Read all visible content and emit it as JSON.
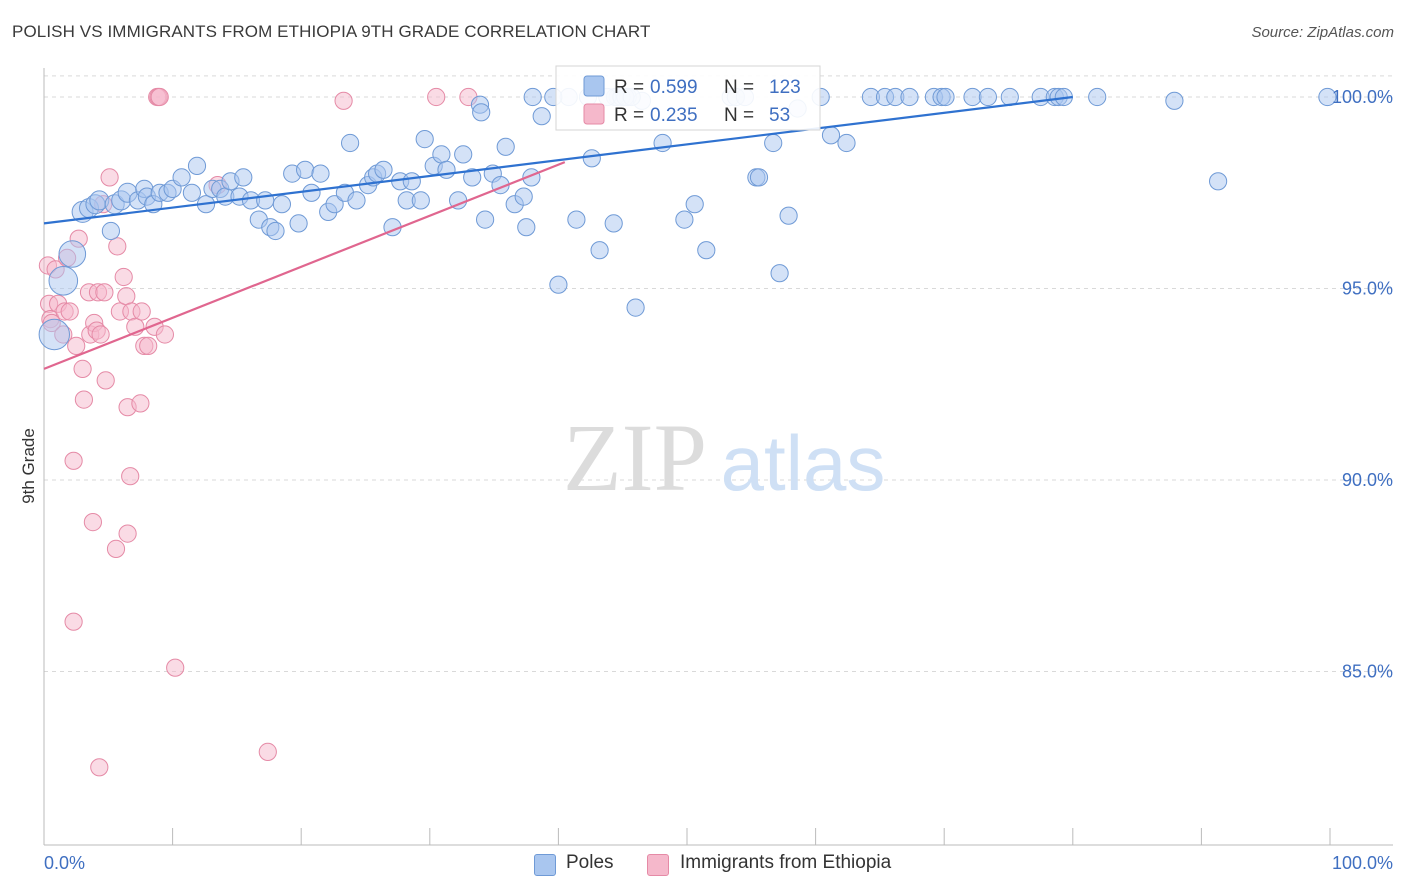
{
  "header": {
    "title": "POLISH VS IMMIGRANTS FROM ETHIOPIA 9TH GRADE CORRELATION CHART",
    "source": "Source: ZipAtlas.com"
  },
  "watermark": {
    "zip": "ZIP",
    "atlas": "atlas"
  },
  "colors": {
    "blue_fill": "#a9c6ef",
    "blue_stroke": "#6f9ad6",
    "blue_line": "#2f72d0",
    "pink_fill": "#f5b8cb",
    "pink_stroke": "#e58aa6",
    "pink_line": "#e0668f",
    "axis_text": "#3f6fc1",
    "grid": "#d9d9d9"
  },
  "chart_data": {
    "type": "scatter",
    "title": "POLISH VS IMMIGRANTS FROM ETHIOPIA 9TH GRADE CORRELATION CHART",
    "xlabel": "",
    "ylabel": "9th Grade",
    "xlim": [
      0,
      100
    ],
    "ylim": [
      80.3,
      100.8
    ],
    "x_tick_labels": [
      "0.0%",
      "100.0%"
    ],
    "y_ticks": [
      85,
      90,
      95,
      100
    ],
    "y_tick_labels": [
      "85.0%",
      "90.0%",
      "95.0%",
      "100.0%"
    ],
    "grid": "horizontal dashed",
    "legend": {
      "position": "top-center",
      "rows": [
        {
          "r_label": "R =",
          "r_value": "0.599",
          "n_label": "N =",
          "n_value": "123"
        },
        {
          "r_label": "R =",
          "r_value": "0.235",
          "n_label": "N =",
          "n_value": "53"
        }
      ]
    },
    "series": [
      {
        "name": "Poles",
        "color": "#a9c6ef",
        "trendline": {
          "x": [
            0,
            80
          ],
          "y": [
            96.7,
            100.0
          ]
        },
        "points": [
          [
            0.8,
            93.8,
            1.6
          ],
          [
            1.5,
            95.2,
            1.5
          ],
          [
            2.2,
            95.9,
            1.4
          ],
          [
            3.0,
            97.0,
            1.1
          ],
          [
            3.5,
            97.1,
            1.0
          ],
          [
            4.0,
            97.2,
            1.0
          ],
          [
            4.3,
            97.3,
            1.0
          ],
          [
            5.2,
            96.5,
            0.9
          ],
          [
            5.5,
            97.2,
            1.0
          ],
          [
            6.0,
            97.3,
            1.0
          ],
          [
            6.5,
            97.5,
            1.0
          ],
          [
            7.3,
            97.3,
            0.9
          ],
          [
            7.8,
            97.6,
            0.9
          ],
          [
            8.0,
            97.4,
            0.9
          ],
          [
            8.5,
            97.2,
            0.9
          ],
          [
            9.0,
            97.5,
            0.9
          ],
          [
            9.6,
            97.5,
            0.9
          ],
          [
            10.0,
            97.6,
            0.9
          ],
          [
            10.7,
            97.9,
            0.9
          ],
          [
            11.5,
            97.5,
            0.9
          ],
          [
            11.9,
            98.2,
            0.9
          ],
          [
            12.6,
            97.2,
            0.9
          ],
          [
            13.1,
            97.6,
            0.9
          ],
          [
            13.7,
            97.6,
            0.9
          ],
          [
            14.1,
            97.4,
            0.9
          ],
          [
            14.5,
            97.8,
            0.9
          ],
          [
            15.2,
            97.4,
            0.9
          ],
          [
            15.5,
            97.9,
            0.9
          ],
          [
            16.1,
            97.3,
            0.9
          ],
          [
            16.7,
            96.8,
            0.9
          ],
          [
            17.2,
            97.3,
            0.9
          ],
          [
            17.6,
            96.6,
            0.9
          ],
          [
            18.0,
            96.5,
            0.9
          ],
          [
            18.5,
            97.2,
            0.9
          ],
          [
            19.3,
            98.0,
            0.9
          ],
          [
            19.8,
            96.7,
            0.9
          ],
          [
            20.3,
            98.1,
            0.9
          ],
          [
            20.8,
            97.5,
            0.9
          ],
          [
            21.5,
            98.0,
            0.9
          ],
          [
            22.1,
            97.0,
            0.9
          ],
          [
            22.6,
            97.2,
            0.9
          ],
          [
            23.4,
            97.5,
            0.9
          ],
          [
            23.8,
            98.8,
            0.9
          ],
          [
            24.3,
            97.3,
            0.9
          ],
          [
            25.2,
            97.7,
            0.9
          ],
          [
            25.6,
            97.9,
            0.9
          ],
          [
            25.9,
            98.0,
            0.9
          ],
          [
            26.4,
            98.1,
            0.9
          ],
          [
            27.1,
            96.6,
            0.9
          ],
          [
            27.7,
            97.8,
            0.9
          ],
          [
            28.2,
            97.3,
            0.9
          ],
          [
            28.6,
            97.8,
            0.9
          ],
          [
            29.3,
            97.3,
            0.9
          ],
          [
            29.6,
            98.9,
            0.9
          ],
          [
            30.3,
            98.2,
            0.9
          ],
          [
            30.9,
            98.5,
            0.9
          ],
          [
            31.3,
            98.1,
            0.9
          ],
          [
            32.2,
            97.3,
            0.9
          ],
          [
            32.6,
            98.5,
            0.9
          ],
          [
            33.3,
            97.9,
            0.9
          ],
          [
            33.9,
            99.8,
            0.9
          ],
          [
            34.3,
            96.8,
            0.9
          ],
          [
            34.9,
            98.0,
            0.9
          ],
          [
            35.5,
            97.7,
            0.9
          ],
          [
            35.9,
            98.7,
            0.9
          ],
          [
            36.6,
            97.2,
            0.9
          ],
          [
            37.3,
            97.4,
            0.9
          ],
          [
            37.5,
            96.6,
            0.9
          ],
          [
            38.0,
            100.0,
            0.9
          ],
          [
            38.7,
            99.5,
            0.9
          ],
          [
            40.0,
            95.1,
            0.9
          ],
          [
            40.8,
            100.0,
            0.9
          ],
          [
            41.4,
            96.8,
            0.9
          ],
          [
            42.3,
            100.0,
            0.9
          ],
          [
            42.6,
            98.4,
            0.9
          ],
          [
            43.2,
            96.0,
            0.9
          ],
          [
            44.3,
            96.7,
            0.9
          ],
          [
            44.6,
            100.0,
            0.9
          ],
          [
            45.4,
            100.0,
            0.9
          ],
          [
            46.0,
            94.5,
            0.9
          ],
          [
            46.5,
            99.9,
            0.9
          ],
          [
            48.1,
            98.8,
            0.9
          ],
          [
            49.8,
            96.8,
            0.9
          ],
          [
            50.6,
            97.2,
            0.9
          ],
          [
            51.5,
            96.0,
            0.9
          ],
          [
            53.4,
            100.0,
            0.9
          ],
          [
            53.8,
            100.0,
            0.9
          ],
          [
            54.5,
            100.0,
            0.9
          ],
          [
            55.4,
            97.9,
            0.9
          ],
          [
            55.6,
            97.9,
            0.9
          ],
          [
            56.7,
            98.8,
            0.9
          ],
          [
            57.2,
            95.4,
            0.9
          ],
          [
            57.9,
            96.9,
            0.9
          ],
          [
            58.6,
            99.7,
            0.9
          ],
          [
            60.4,
            100.0,
            0.9
          ],
          [
            61.2,
            99.0,
            0.9
          ],
          [
            62.4,
            98.8,
            0.9
          ],
          [
            64.3,
            100.0,
            0.9
          ],
          [
            65.4,
            100.0,
            0.9
          ],
          [
            66.2,
            100.0,
            0.9
          ],
          [
            67.3,
            100.0,
            0.9
          ],
          [
            69.2,
            100.0,
            0.9
          ],
          [
            69.8,
            100.0,
            0.9
          ],
          [
            70.1,
            100.0,
            0.9
          ],
          [
            72.2,
            100.0,
            0.9
          ],
          [
            73.4,
            100.0,
            0.9
          ],
          [
            75.1,
            100.0,
            0.9
          ],
          [
            77.5,
            100.0,
            0.9
          ],
          [
            78.6,
            100.0,
            0.9
          ],
          [
            78.9,
            100.0,
            0.9
          ],
          [
            79.3,
            100.0,
            0.9
          ],
          [
            81.9,
            100.0,
            0.9
          ],
          [
            87.9,
            99.9,
            0.9
          ],
          [
            91.3,
            97.8,
            0.9
          ],
          [
            99.8,
            100.0,
            0.9
          ],
          [
            44.4,
            100.0,
            0.9
          ],
          [
            43.8,
            100.0,
            0.9
          ],
          [
            44.9,
            100.0,
            0.9
          ],
          [
            39.6,
            100.0,
            0.9
          ],
          [
            34.0,
            99.6,
            0.9
          ],
          [
            45.2,
            100.0,
            0.9
          ],
          [
            45.7,
            100.0,
            0.9
          ],
          [
            37.9,
            97.9,
            0.9
          ]
        ]
      },
      {
        "name": "Immigrants from Ethiopia",
        "color": "#f5b8cb",
        "trendline": {
          "x": [
            0,
            40.5
          ],
          "y": [
            92.9,
            98.3
          ]
        },
        "points": [
          [
            0.3,
            95.6,
            0.9
          ],
          [
            0.4,
            94.6,
            0.9
          ],
          [
            0.5,
            94.2,
            0.9
          ],
          [
            0.6,
            94.1,
            0.9
          ],
          [
            0.9,
            95.5,
            0.9
          ],
          [
            1.1,
            94.6,
            0.9
          ],
          [
            1.5,
            93.8,
            0.9
          ],
          [
            1.6,
            94.4,
            0.9
          ],
          [
            1.8,
            95.8,
            0.9
          ],
          [
            2.0,
            94.4,
            0.9
          ],
          [
            2.3,
            90.5,
            0.9
          ],
          [
            2.3,
            86.3,
            0.9
          ],
          [
            2.5,
            93.5,
            0.9
          ],
          [
            2.7,
            96.3,
            0.9
          ],
          [
            3.0,
            92.9,
            0.9
          ],
          [
            3.1,
            92.1,
            0.9
          ],
          [
            3.5,
            94.9,
            0.9
          ],
          [
            3.6,
            93.8,
            0.9
          ],
          [
            3.8,
            88.9,
            0.9
          ],
          [
            3.9,
            94.1,
            0.9
          ],
          [
            4.1,
            93.9,
            0.9
          ],
          [
            4.2,
            94.9,
            0.9
          ],
          [
            4.3,
            82.5,
            0.9
          ],
          [
            4.4,
            93.8,
            0.9
          ],
          [
            4.6,
            97.2,
            0.9
          ],
          [
            4.7,
            94.9,
            0.9
          ],
          [
            4.8,
            92.6,
            0.9
          ],
          [
            5.1,
            97.9,
            0.9
          ],
          [
            5.6,
            88.2,
            0.9
          ],
          [
            5.7,
            96.1,
            0.9
          ],
          [
            5.9,
            94.4,
            0.9
          ],
          [
            6.2,
            95.3,
            0.9
          ],
          [
            6.4,
            94.8,
            0.9
          ],
          [
            6.5,
            88.6,
            0.9
          ],
          [
            6.5,
            91.9,
            0.9
          ],
          [
            6.7,
            90.1,
            0.9
          ],
          [
            6.8,
            94.4,
            0.9
          ],
          [
            7.1,
            94.0,
            0.9
          ],
          [
            7.5,
            92.0,
            0.9
          ],
          [
            7.6,
            94.4,
            0.9
          ],
          [
            7.8,
            93.5,
            0.9
          ],
          [
            8.1,
            93.5,
            0.9
          ],
          [
            8.6,
            94.0,
            0.9
          ],
          [
            8.8,
            100.0,
            0.9
          ],
          [
            8.9,
            100.0,
            0.9
          ],
          [
            9.0,
            100.0,
            0.9
          ],
          [
            9.4,
            93.8,
            0.9
          ],
          [
            10.2,
            85.1,
            0.9
          ],
          [
            17.4,
            82.9,
            0.9
          ],
          [
            23.3,
            99.9,
            0.9
          ],
          [
            30.5,
            100.0,
            0.9
          ],
          [
            33.0,
            100.0,
            0.9
          ],
          [
            13.5,
            97.7,
            0.9
          ]
        ]
      }
    ]
  },
  "bottom_legend": [
    "Poles",
    "Immigrants from Ethiopia"
  ]
}
